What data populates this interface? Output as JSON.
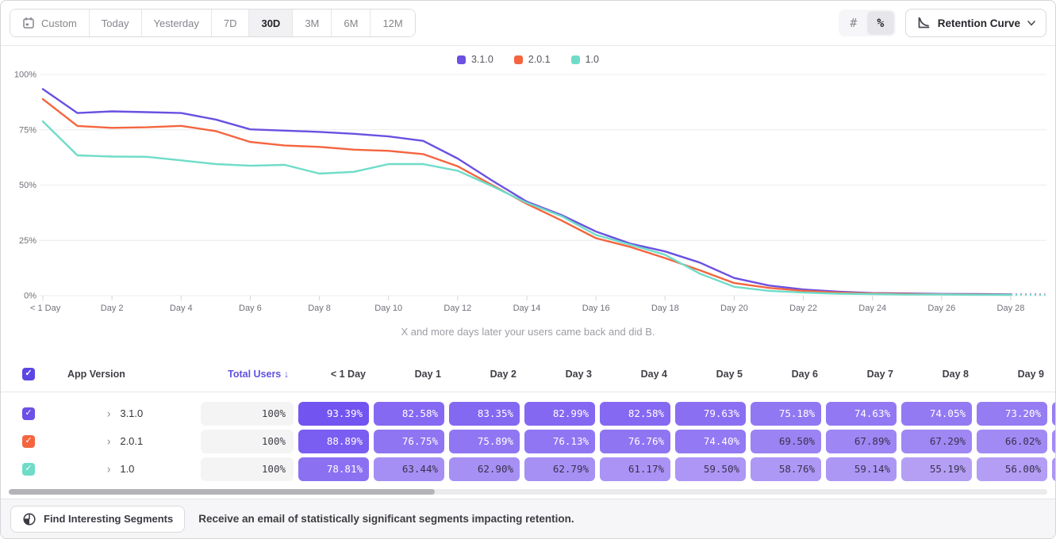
{
  "toolbar": {
    "date_ranges": [
      {
        "label": "Custom",
        "icon": "calendar-icon",
        "active": false
      },
      {
        "label": "Today",
        "active": false
      },
      {
        "label": "Yesterday",
        "active": false
      },
      {
        "label": "7D",
        "active": false
      },
      {
        "label": "30D",
        "active": true
      },
      {
        "label": "3M",
        "active": false
      },
      {
        "label": "6M",
        "active": false
      },
      {
        "label": "12M",
        "active": false
      }
    ],
    "mode_toggle": [
      {
        "glyph": "#",
        "name": "absolute-numbers",
        "active": false
      },
      {
        "glyph": "%",
        "name": "percentages",
        "active": true
      }
    ],
    "chart_type_dropdown": {
      "label": "Retention Curve"
    }
  },
  "legend": [
    {
      "label": "3.1.0",
      "color": "#6b50e1"
    },
    {
      "label": "2.0.1",
      "color": "#f4653f"
    },
    {
      "label": "1.0",
      "color": "#6fdcc8"
    }
  ],
  "chart_data": {
    "type": "line",
    "caption": "X and more days later your users came back and did B.",
    "ylim": [
      0,
      100
    ],
    "y_tick_labels": [
      "0%",
      "25%",
      "50%",
      "75%",
      "100%"
    ],
    "x_range_days": [
      0,
      29
    ],
    "x_tick_labels": [
      "< 1 Day",
      "Day 2",
      "Day 4",
      "Day 6",
      "Day 8",
      "Day 10",
      "Day 12",
      "Day 14",
      "Day 16",
      "Day 18",
      "Day 20",
      "Day 22",
      "Day 24",
      "Day 26",
      "Day 28"
    ],
    "grid": true,
    "legend_position": "top-center",
    "last_segment_dashed": true,
    "series": [
      {
        "name": "3.1.0",
        "color": "#6b50e1",
        "values": [
          93.39,
          82.58,
          83.35,
          82.99,
          82.58,
          79.63,
          75.18,
          74.63,
          74.05,
          73.2,
          72.0,
          70.0,
          62.0,
          52.0,
          42.5,
          36.5,
          29.0,
          23.5,
          20.0,
          15.0,
          8.0,
          4.6,
          2.8,
          1.8,
          1.2,
          1.0,
          0.8,
          0.7,
          0.6,
          0.6
        ]
      },
      {
        "name": "2.0.1",
        "color": "#f4653f",
        "values": [
          88.89,
          76.75,
          75.89,
          76.13,
          76.76,
          74.4,
          69.5,
          67.89,
          67.29,
          66.02,
          65.5,
          64.0,
          58.5,
          50.0,
          41.5,
          34.0,
          26.0,
          22.0,
          17.0,
          11.5,
          5.7,
          3.5,
          2.2,
          1.4,
          1.0,
          0.8,
          0.6,
          0.5,
          0.4,
          0.4
        ]
      },
      {
        "name": "1.0",
        "color": "#6fdcc8",
        "values": [
          78.81,
          63.44,
          62.9,
          62.79,
          61.17,
          59.5,
          58.76,
          59.14,
          55.19,
          56.0,
          59.5,
          59.5,
          56.5,
          49.5,
          42.0,
          36.0,
          27.5,
          23.0,
          18.5,
          10.0,
          4.0,
          2.2,
          1.4,
          0.9,
          0.7,
          0.5,
          0.5,
          0.4,
          0.4,
          0.3
        ]
      }
    ]
  },
  "table": {
    "select_all_checked": true,
    "app_version_label": "App Version",
    "total_users_label": "Total Users",
    "total_users_sort": "↓",
    "day_headers": [
      "< 1 Day",
      "Day 1",
      "Day 2",
      "Day 3",
      "Day 4",
      "Day 5",
      "Day 6",
      "Day 7",
      "Day 8",
      "Day 9"
    ],
    "rows": [
      {
        "version": "3.1.0",
        "checkbox_color": "#6c50e8",
        "checked": true,
        "total_users": "100%",
        "retention": [
          "93.39%",
          "82.58%",
          "83.35%",
          "82.99%",
          "82.58%",
          "79.63%",
          "75.18%",
          "74.63%",
          "74.05%",
          "73.20%"
        ]
      },
      {
        "version": "2.0.1",
        "checkbox_color": "#f4663f",
        "checked": true,
        "total_users": "100%",
        "retention": [
          "88.89%",
          "76.75%",
          "75.89%",
          "76.13%",
          "76.76%",
          "74.40%",
          "69.50%",
          "67.89%",
          "67.29%",
          "66.02%"
        ]
      },
      {
        "version": "1.0",
        "checkbox_color": "#6fdcc8",
        "checked": true,
        "total_users": "100%",
        "retention": [
          "78.81%",
          "63.44%",
          "62.90%",
          "62.79%",
          "61.17%",
          "59.50%",
          "58.76%",
          "59.14%",
          "55.19%",
          "56.00%"
        ]
      }
    ]
  },
  "footer": {
    "button_label": "Find Interesting Segments",
    "message": "Receive an email of statistically significant segments impacting retention."
  },
  "colors": {
    "cell_low": "#bda9f6",
    "cell_high": "#6f51f0",
    "cell_text_dark": "#38324e",
    "header_checkbox": "#5b46e5",
    "axis_text": "#70707a",
    "gridline": "#ececef"
  }
}
